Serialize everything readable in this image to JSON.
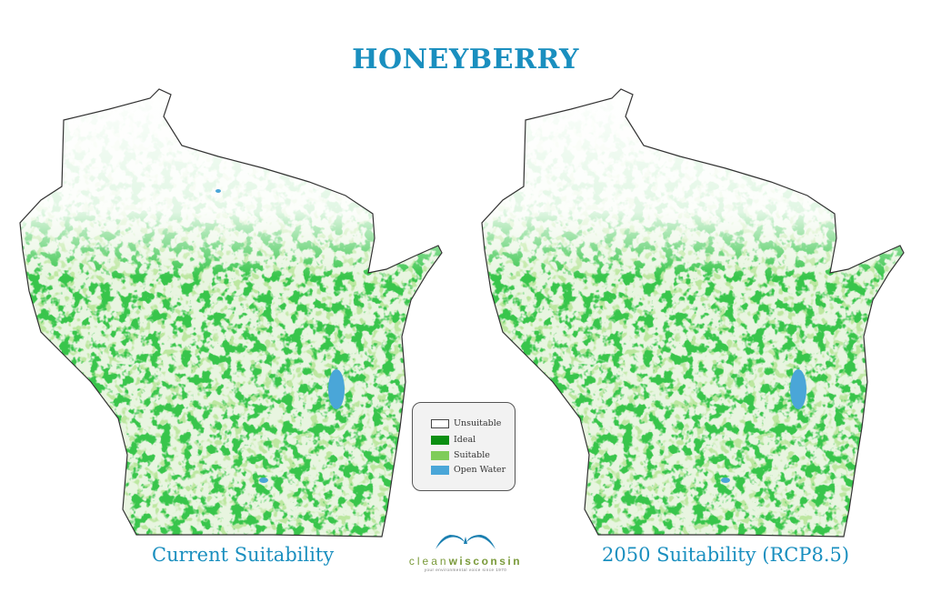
{
  "title": "HONEYBERRY",
  "maps": [
    {
      "caption": "Current Suitability"
    },
    {
      "caption": "2050 Suitability (RCP8.5)"
    }
  ],
  "legend": {
    "items": [
      {
        "label": "Unsuitable",
        "color": "#ffffff"
      },
      {
        "label": "Ideal",
        "color": "#0b8f12"
      },
      {
        "label": "Suitable",
        "color": "#7fcc5a"
      },
      {
        "label": "Open Water",
        "color": "#4aa6d8"
      }
    ]
  },
  "logo": {
    "name_light": "clean",
    "name_bold": "wisconsin",
    "tagline": "your environmental voice since 1970",
    "color": "#1a7fb0"
  },
  "colors": {
    "title": "#1a8fbf"
  }
}
